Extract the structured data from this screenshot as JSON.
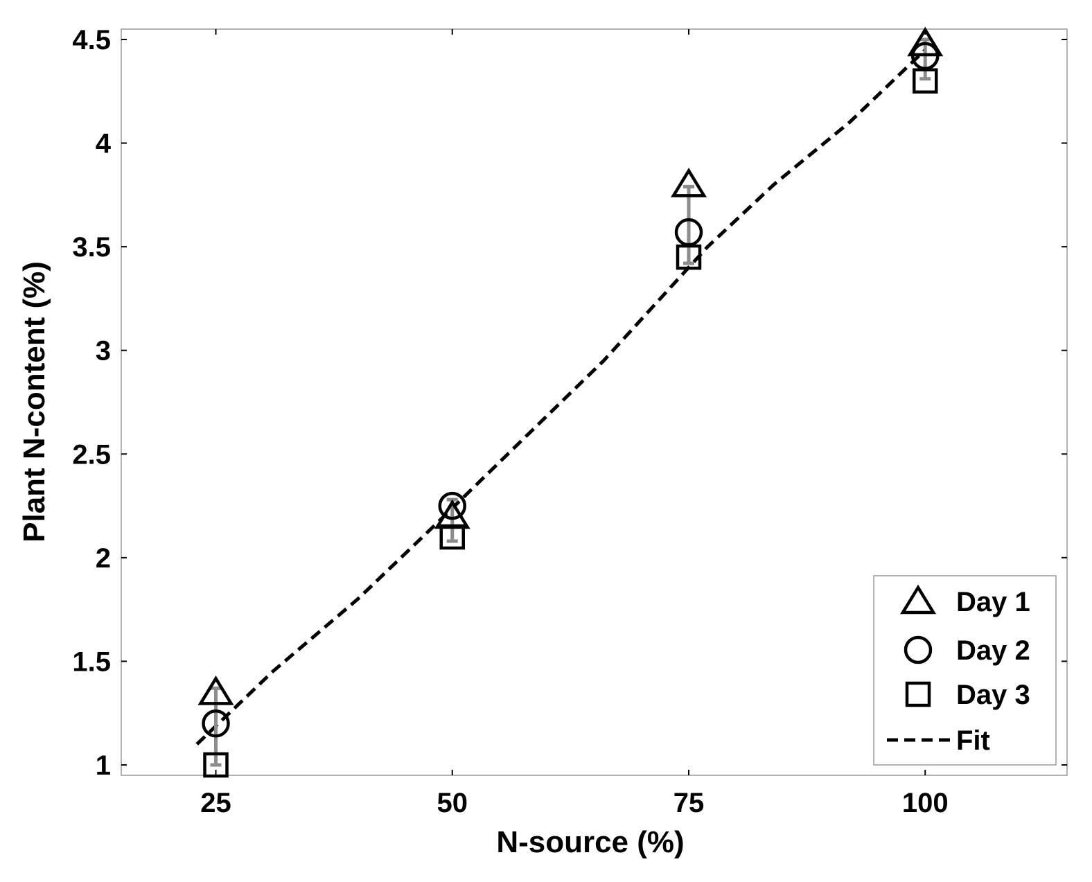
{
  "chart_data": {
    "type": "scatter",
    "xlabel": "N-source (%)",
    "ylabel": "Plant N-content (%)",
    "xlim": [
      15,
      115
    ],
    "ylim": [
      0.95,
      4.55
    ],
    "xticks": [
      25,
      50,
      75,
      100
    ],
    "yticks": [
      1,
      1.5,
      2,
      2.5,
      3,
      3.5,
      4,
      4.5
    ],
    "xtick_labels": [
      "25",
      "50",
      "75",
      "100"
    ],
    "ytick_labels": [
      "1",
      "1.5",
      "2",
      "2.5",
      "3",
      "3.5",
      "4",
      "4.5"
    ],
    "legend_position": "bottom-right",
    "grid": false,
    "series": [
      {
        "name": "Day 1",
        "marker": "triangle",
        "x": [
          25,
          50,
          75,
          100
        ],
        "y": [
          1.35,
          2.2,
          3.8,
          4.48
        ]
      },
      {
        "name": "Day 2",
        "marker": "circle",
        "x": [
          25,
          50,
          75,
          100
        ],
        "y": [
          1.2,
          2.25,
          3.57,
          4.42
        ]
      },
      {
        "name": "Day 3",
        "marker": "square",
        "x": [
          25,
          50,
          75,
          100
        ],
        "y": [
          1.0,
          2.1,
          3.45,
          4.3
        ]
      }
    ],
    "error_bars": {
      "color": "#8c8c8c",
      "x": [
        25,
        50,
        75,
        100
      ],
      "low": [
        1.0,
        2.08,
        3.42,
        4.31
      ],
      "high": [
        1.37,
        2.28,
        3.79,
        4.5
      ]
    },
    "fit": {
      "name": "Fit",
      "style": "dashed",
      "x": [
        23,
        31,
        40,
        48,
        57,
        66,
        74,
        77,
        84,
        92,
        100
      ],
      "y": [
        1.1,
        1.45,
        1.8,
        2.15,
        2.55,
        2.95,
        3.35,
        3.5,
        3.8,
        4.1,
        4.45
      ]
    }
  }
}
